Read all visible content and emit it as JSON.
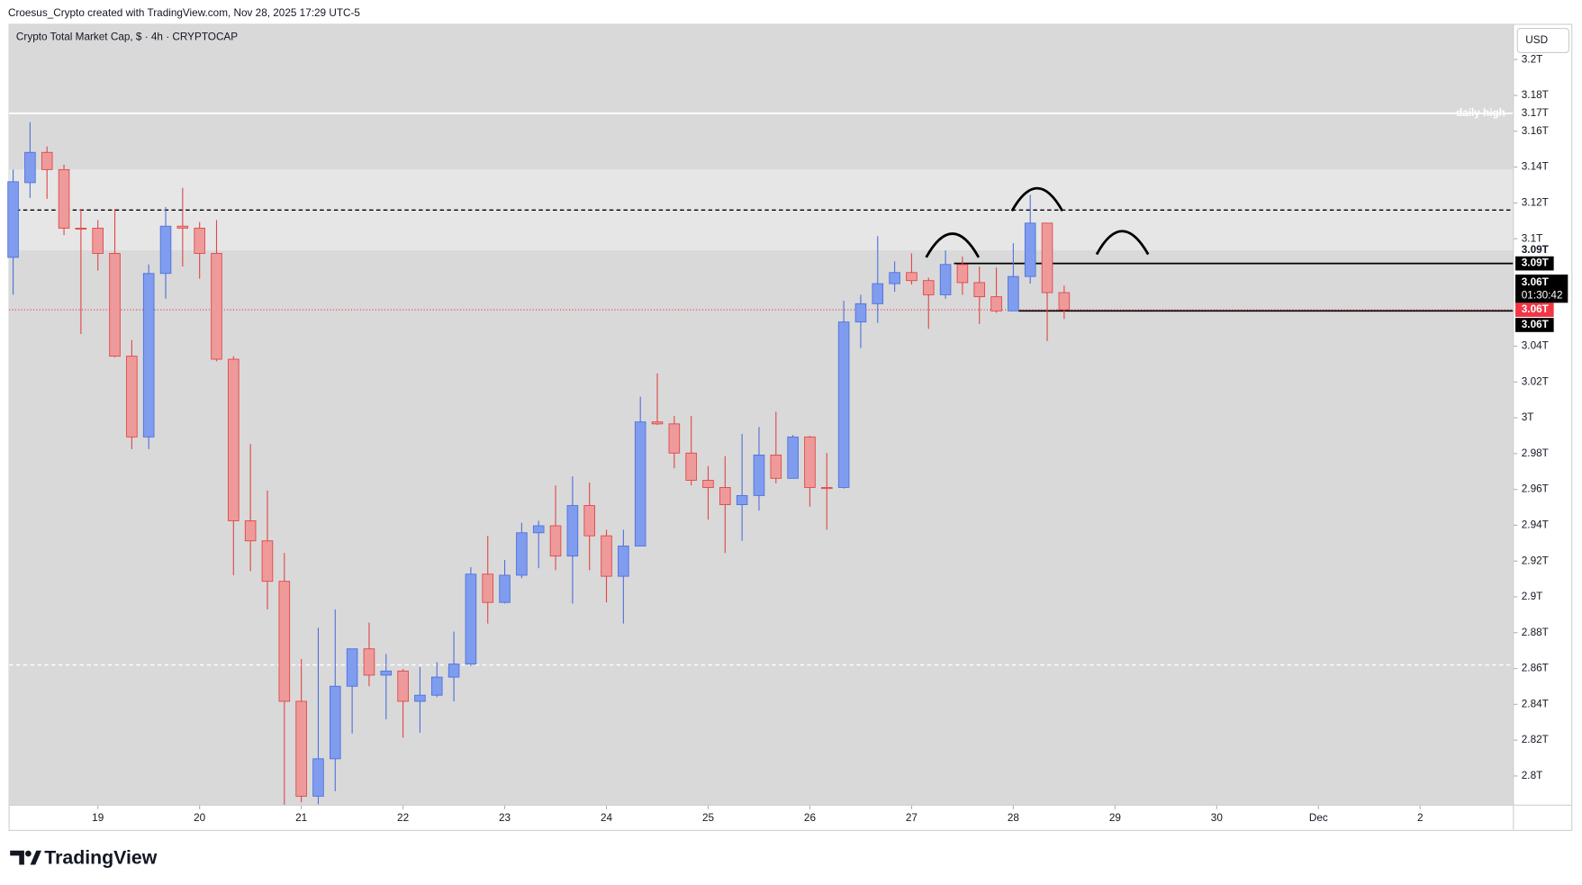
{
  "header": "Croesus_Crypto created with TradingView.com, Nov 28, 2025 17:29 UTC-5",
  "brand": "TradingView",
  "chart_data": {
    "type": "candlestick",
    "title": "Crypto Total Market Cap, $ · 4h · CRYPTOCAP",
    "currency": "USD",
    "up_color": "#7f9cef",
    "up_edge": "#4f72dc",
    "down_color": "#ef9a9a",
    "down_edge": "#e04848",
    "open": [
      3.0896,
      3.1313,
      3.1482,
      3.1386,
      3.1059,
      3.1059,
      3.0918,
      3.0344,
      2.9893,
      3.0806,
      3.107,
      3.1059,
      3.0918,
      3.0327,
      2.9425,
      2.9313,
      2.9087,
      2.8417,
      2.7887,
      2.8096,
      2.8501,
      2.871,
      2.8563,
      2.8586,
      2.8417,
      2.8451,
      2.8552,
      2.8625,
      2.9127,
      2.8969,
      2.9121,
      2.9358,
      2.9397,
      2.9228,
      2.951,
      2.9341,
      2.9115,
      2.9284,
      2.9977,
      2.9966,
      2.9803,
      2.9651,
      2.9611,
      2.9515,
      2.9566,
      2.9792,
      2.9662,
      2.9893,
      2.9611,
      2.9611,
      3.0535,
      3.0637,
      3.0749,
      3.0811,
      3.0766,
      3.0687,
      3.0856,
      3.0755,
      3.0676,
      3.0597,
      3.0789,
      3.1087,
      3.0699
    ],
    "high": [
      3.1386,
      3.1651,
      3.1515,
      3.1414,
      3.1166,
      3.1104,
      3.1166,
      3.0434,
      3.0856,
      3.1177,
      3.1284,
      3.1093,
      3.1104,
      3.0344,
      2.9853,
      2.9594,
      2.9245,
      2.8653,
      2.8828,
      2.893,
      2.871,
      2.8856,
      2.8682,
      2.8597,
      2.8608,
      2.8636,
      2.8806,
      2.9166,
      2.9341,
      2.9206,
      2.9414,
      2.9425,
      2.9622,
      2.9673,
      2.9639,
      2.9375,
      2.9375,
      3.0118,
      3.0248,
      3.0011,
      3.0011,
      2.973,
      2.9786,
      2.991,
      2.9949,
      3.0034,
      2.9904,
      2.9899,
      2.9803,
      3.0654,
      3.0687,
      3.1014,
      3.0873,
      3.0918,
      3.0783,
      3.0935,
      3.0901,
      3.0845,
      3.0839,
      3.0975,
      3.1245,
      3.1087,
      3.0738
    ],
    "low": [
      3.0687,
      3.1228,
      3.1223,
      3.102,
      3.0468,
      3.0822,
      3.0338,
      2.9825,
      2.9825,
      3.0665,
      3.0845,
      3.0777,
      3.0316,
      2.9121,
      2.9144,
      2.893,
      2.7837,
      2.7853,
      2.7842,
      2.7915,
      2.8237,
      2.8501,
      2.8316,
      2.8214,
      2.8242,
      2.844,
      2.8417,
      2.8614,
      2.8851,
      2.8963,
      2.9104,
      2.916,
      2.9149,
      2.8963,
      2.9149,
      2.8969,
      2.8851,
      2.9284,
      2.996,
      2.9718,
      2.9622,
      2.9431,
      2.9245,
      2.9313,
      2.9482,
      2.9634,
      2.9662,
      2.9504,
      2.9375,
      2.9605,
      3.0389,
      3.053,
      3.0704,
      3.0744,
      3.0496,
      3.0665,
      3.0687,
      3.0524,
      3.0586,
      3.0597,
      3.0749,
      3.0428,
      3.0552
    ],
    "close": [
      3.1318,
      3.1482,
      3.1386,
      3.1059,
      3.1054,
      3.0918,
      3.0344,
      2.9893,
      3.0806,
      3.107,
      3.1059,
      3.0918,
      3.0327,
      2.9425,
      2.9313,
      2.9087,
      2.8417,
      2.7887,
      2.8096,
      2.8501,
      2.871,
      2.8563,
      2.8586,
      2.8417,
      2.8451,
      2.8552,
      2.8625,
      2.9127,
      2.8969,
      2.9121,
      2.9358,
      2.9397,
      2.9228,
      2.951,
      2.9341,
      2.9115,
      2.9284,
      2.9977,
      2.9966,
      2.9803,
      2.9651,
      2.9611,
      2.9515,
      2.9566,
      2.9792,
      2.9662,
      2.9893,
      2.9611,
      2.9605,
      3.0535,
      3.0637,
      3.0749,
      3.0811,
      3.0766,
      3.0687,
      3.0856,
      3.0755,
      3.0676,
      3.0597,
      3.0789,
      3.1087,
      3.0699,
      3.0603
    ],
    "xlim": [
      -0.238,
      88.5
    ],
    "xticks": [
      {
        "value": 5,
        "label": "19"
      },
      {
        "value": 11,
        "label": "20"
      },
      {
        "value": 17,
        "label": "21"
      },
      {
        "value": 23,
        "label": "22"
      },
      {
        "value": 29,
        "label": "23"
      },
      {
        "value": 35,
        "label": "24"
      },
      {
        "value": 41,
        "label": "25"
      },
      {
        "value": 47,
        "label": "26"
      },
      {
        "value": 53,
        "label": "27"
      },
      {
        "value": 59,
        "label": "28"
      },
      {
        "value": 65,
        "label": "29"
      },
      {
        "value": 71,
        "label": "30"
      },
      {
        "value": 77,
        "label": "Dec"
      },
      {
        "value": 83,
        "label": "2"
      }
    ],
    "ylim": [
      2.7837,
      3.2197
    ],
    "yticks": [
      {
        "value": 3.2,
        "label": "3.2T"
      },
      {
        "value": 3.18,
        "label": "3.18T"
      },
      {
        "value": 3.16,
        "label": "3.16T"
      },
      {
        "value": 3.14,
        "label": "3.14T"
      },
      {
        "value": 3.12,
        "label": "3.12T"
      },
      {
        "value": 3.1,
        "label": "3.1T"
      },
      {
        "value": 3.04,
        "label": "3.04T"
      },
      {
        "value": 3.02,
        "label": "3.02T"
      },
      {
        "value": 3,
        "label": "3T"
      },
      {
        "value": 2.98,
        "label": "2.98T"
      },
      {
        "value": 2.96,
        "label": "2.96T"
      },
      {
        "value": 2.94,
        "label": "2.94T"
      },
      {
        "value": 2.92,
        "label": "2.92T"
      },
      {
        "value": 2.9,
        "label": "2.9T"
      },
      {
        "value": 2.88,
        "label": "2.88T"
      },
      {
        "value": 2.86,
        "label": "2.86T"
      },
      {
        "value": 2.84,
        "label": "2.84T"
      },
      {
        "value": 2.82,
        "label": "2.82T"
      },
      {
        "value": 2.8,
        "label": "2.8T"
      }
    ],
    "grid": false,
    "zone": {
      "from": 3.0935,
      "to": 3.1386,
      "color": "#e6e6e6"
    },
    "levels": [
      {
        "value": 3.17,
        "label": "daily high",
        "color": "#ffffff",
        "dash": "solid",
        "tag": "3.17T"
      },
      {
        "value": 3.116,
        "color": "#000000",
        "dash": "dashed"
      },
      {
        "value": 2.862,
        "color": "#ffffff",
        "dash": "dashed"
      },
      {
        "value": 3.0862,
        "color": "#000000",
        "dash": "solid",
        "start": 55.5
      },
      {
        "value": 3.0597,
        "color": "#000000",
        "dash": "solid",
        "start": 59.3
      }
    ],
    "price_tags": [
      {
        "value": 3.0935,
        "label": "3.09T",
        "color": "#ffffff",
        "text_color": "#131722"
      },
      {
        "value": 3.0862,
        "label": "3.09T",
        "color": "#000000",
        "text_color": "#ffffff"
      },
      {
        "value": 3.0603,
        "label": "3.06T",
        "color": "#f23645",
        "text_color": "#ffffff"
      }
    ],
    "countdown": {
      "price": "3.06T",
      "timer": "01:30:42"
    },
    "extra_tag": "3.06T",
    "last_price_color": "#f23645"
  }
}
